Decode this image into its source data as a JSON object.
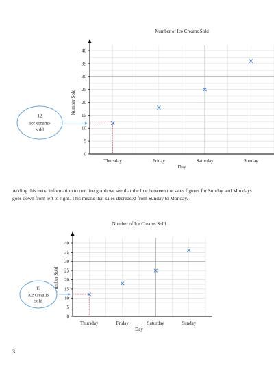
{
  "paragraph": "Adding this extra information to our line graph we see that the line between the sales figures for Sunday and Mondays goes down from left to right. This means that sales decreased from Sunday to Monday.",
  "page_number": "3",
  "chart_data": [
    {
      "type": "scatter",
      "title": "Number of Ice Creams Sold",
      "xlabel": "Day",
      "ylabel": "Number Sold",
      "categories": [
        "Thursday",
        "Friday",
        "Saturday",
        "Sunday"
      ],
      "values": [
        12,
        18,
        25,
        36
      ],
      "ylim": [
        0,
        40
      ],
      "yticks": [
        0,
        5,
        10,
        15,
        20,
        25,
        30,
        35,
        40
      ],
      "grid": true,
      "marker_color": "#3a7fcf",
      "callout": {
        "lines": [
          "12",
          "ice creams",
          "sold"
        ],
        "category": "Thursday",
        "value": 12
      }
    },
    {
      "type": "scatter",
      "title": "Number of Ice Creams Sold",
      "xlabel": "Day",
      "ylabel": "Number Sold",
      "categories": [
        "Thursday",
        "Friday",
        "Saturday",
        "Sunday"
      ],
      "values": [
        12,
        18,
        25,
        36
      ],
      "ylim": [
        0,
        40
      ],
      "yticks": [
        0,
        5,
        10,
        15,
        20,
        25,
        30,
        35,
        40
      ],
      "grid": true,
      "marker_color": "#3a7fcf",
      "callout": {
        "lines": [
          "12",
          "ice creams",
          "sold"
        ],
        "category": "Thursday",
        "value": 12
      }
    }
  ]
}
